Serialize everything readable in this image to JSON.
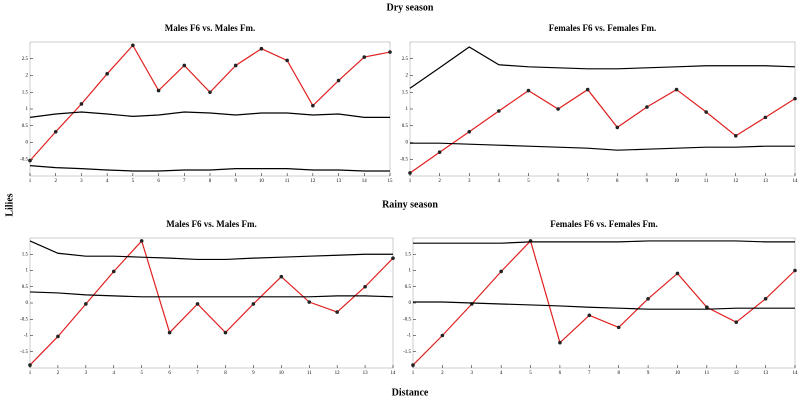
{
  "header": {
    "dry": "Dry season",
    "rainy": "Rainy season",
    "xlabel": "Distance",
    "ylabel": "Lilies"
  },
  "chart_data": [
    {
      "type": "line",
      "title": "Males F6 vs. Males Fm.",
      "x": [
        1,
        2,
        3,
        4,
        5,
        6,
        7,
        8,
        9,
        10,
        11,
        12,
        13,
        14,
        15
      ],
      "xticks": [
        1,
        2,
        3,
        4,
        5,
        6,
        7,
        8,
        9,
        10,
        11,
        12,
        13,
        14,
        15
      ],
      "xlim": [
        1,
        15
      ],
      "ylim": [
        -1,
        3
      ],
      "yticks": [
        -0.5,
        0,
        0.5,
        1,
        1.5,
        2,
        2.5
      ],
      "series": [
        {
          "color": "#e02020",
          "markers": true,
          "values": [
            -0.54,
            0.32,
            1.15,
            2.05,
            2.9,
            1.55,
            2.3,
            1.5,
            2.3,
            2.8,
            2.45,
            1.1,
            1.85,
            2.55,
            2.7
          ]
        },
        {
          "color": "#000000",
          "markers": false,
          "values": [
            0.75,
            0.85,
            0.91,
            0.85,
            0.78,
            0.82,
            0.91,
            0.88,
            0.82,
            0.88,
            0.88,
            0.82,
            0.85,
            0.75,
            0.75
          ]
        },
        {
          "color": "#000000",
          "markers": false,
          "values": [
            -0.69,
            -0.75,
            -0.78,
            -0.82,
            -0.85,
            -0.85,
            -0.82,
            -0.82,
            -0.78,
            -0.78,
            -0.78,
            -0.82,
            -0.82,
            -0.85,
            -0.85
          ]
        }
      ]
    },
    {
      "type": "line",
      "title": "Females F6 vs. Females Fm.",
      "x": [
        1,
        2,
        3,
        4,
        5,
        6,
        7,
        8,
        9,
        10,
        11,
        12,
        13,
        14
      ],
      "xticks": [
        1,
        2,
        3,
        4,
        5,
        6,
        7,
        8,
        9,
        10,
        11,
        12,
        13,
        14
      ],
      "xlim": [
        1,
        14
      ],
      "ylim": [
        -1,
        3
      ],
      "yticks": [
        -0.5,
        0,
        0.5,
        1,
        1.5,
        2,
        2.5
      ],
      "series": [
        {
          "color": "#e02020",
          "markers": true,
          "values": [
            -0.91,
            -0.29,
            0.32,
            0.94,
            1.55,
            1,
            1.58,
            0.45,
            1.06,
            1.58,
            0.91,
            0.2,
            0.75,
            1.31
          ]
        },
        {
          "color": "#000000",
          "markers": false,
          "values": [
            1.62,
            2.23,
            2.85,
            2.32,
            2.26,
            2.23,
            2.2,
            2.2,
            2.23,
            2.26,
            2.29,
            2.29,
            2.29,
            2.26
          ]
        },
        {
          "color": "#000000",
          "markers": false,
          "values": [
            -0.02,
            -0.02,
            -0.05,
            -0.08,
            -0.11,
            -0.14,
            -0.17,
            -0.23,
            -0.2,
            -0.17,
            -0.14,
            -0.14,
            -0.11,
            -0.11
          ]
        }
      ]
    },
    {
      "type": "line",
      "title": "Males F6 vs. Males Fm.",
      "x": [
        1,
        2,
        3,
        4,
        5,
        6,
        7,
        8,
        9,
        10,
        11,
        12,
        13,
        14
      ],
      "xticks": [
        1,
        2,
        3,
        4,
        5,
        6,
        7,
        8,
        9,
        10,
        11,
        12,
        13,
        14
      ],
      "xlim": [
        1,
        14
      ],
      "ylim": [
        -2,
        2
      ],
      "yticks": [
        -1.5,
        -1,
        -0.5,
        0,
        0.5,
        1,
        1.5
      ],
      "series": [
        {
          "color": "#e02020",
          "markers": true,
          "values": [
            -1.91,
            -1.03,
            -0.03,
            0.97,
            1.91,
            -0.91,
            -0.03,
            -0.91,
            -0.03,
            0.81,
            0.03,
            -0.28,
            0.5,
            1.38
          ]
        },
        {
          "color": "#000000",
          "markers": false,
          "values": [
            1.91,
            1.53,
            1.44,
            1.44,
            1.41,
            1.38,
            1.34,
            1.34,
            1.38,
            1.41,
            1.44,
            1.47,
            1.5,
            1.5
          ]
        },
        {
          "color": "#000000",
          "markers": false,
          "values": [
            0.34,
            0.31,
            0.25,
            0.22,
            0.19,
            0.19,
            0.19,
            0.19,
            0.19,
            0.19,
            0.19,
            0.22,
            0.22,
            0.19
          ]
        }
      ]
    },
    {
      "type": "line",
      "title": "Females F6 vs. Females Fm.",
      "x": [
        1,
        2,
        3,
        4,
        5,
        6,
        7,
        8,
        9,
        10,
        11,
        12,
        13,
        14
      ],
      "xticks": [
        1,
        2,
        3,
        4,
        5,
        6,
        7,
        8,
        9,
        10,
        11,
        12,
        13,
        14
      ],
      "xlim": [
        1,
        14
      ],
      "ylim": [
        -2,
        2
      ],
      "yticks": [
        -1.5,
        -1,
        -0.5,
        0,
        0.5,
        1,
        1.5
      ],
      "series": [
        {
          "color": "#e02020",
          "markers": true,
          "values": [
            -1.91,
            -1,
            -0.03,
            0.97,
            1.91,
            -1.22,
            -0.38,
            -0.75,
            0.13,
            0.91,
            -0.13,
            -0.59,
            0.13,
            1
          ]
        },
        {
          "color": "#000000",
          "markers": false,
          "values": [
            1.84,
            1.84,
            1.84,
            1.84,
            1.88,
            1.88,
            1.88,
            1.88,
            1.91,
            1.91,
            1.91,
            1.91,
            1.88,
            1.88
          ]
        },
        {
          "color": "#000000",
          "markers": false,
          "values": [
            0.03,
            0.03,
            0,
            -0.03,
            -0.06,
            -0.09,
            -0.13,
            -0.16,
            -0.19,
            -0.19,
            -0.19,
            -0.16,
            -0.16,
            -0.16
          ]
        }
      ]
    }
  ]
}
